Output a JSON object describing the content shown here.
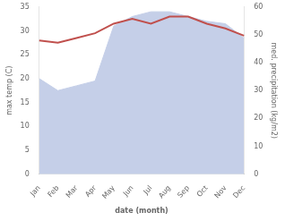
{
  "chart_data": {
    "type": "line",
    "categories": [
      "Jan",
      "Feb",
      "Mar",
      "Apr",
      "May",
      "Jun",
      "Jul",
      "Aug",
      "Sep",
      "Oct",
      "Nov",
      "Dec"
    ],
    "series": [
      {
        "type": "area",
        "color": "#c5cfe8",
        "values": [
          20.0,
          17.5,
          18.5,
          19.5,
          31.0,
          33.0,
          34.0,
          34.0,
          33.0,
          32.0,
          31.5,
          28.5
        ]
      },
      {
        "type": "line",
        "color": "#c0504d",
        "values": [
          28.0,
          27.5,
          28.5,
          29.5,
          31.5,
          32.5,
          31.5,
          33.0,
          33.0,
          31.5,
          30.5,
          29.0
        ]
      }
    ],
    "xlabel": "date (month)",
    "ylabel": "max temp (C)",
    "y2label": "med. precipitation (kg/m2)",
    "ylim": [
      0,
      35
    ],
    "yticks": [
      0,
      5,
      10,
      15,
      20,
      25,
      30,
      35
    ],
    "y2lim": [
      0,
      60
    ],
    "y2ticks": [
      0,
      10,
      20,
      30,
      40,
      50,
      60
    ],
    "grid": false
  }
}
